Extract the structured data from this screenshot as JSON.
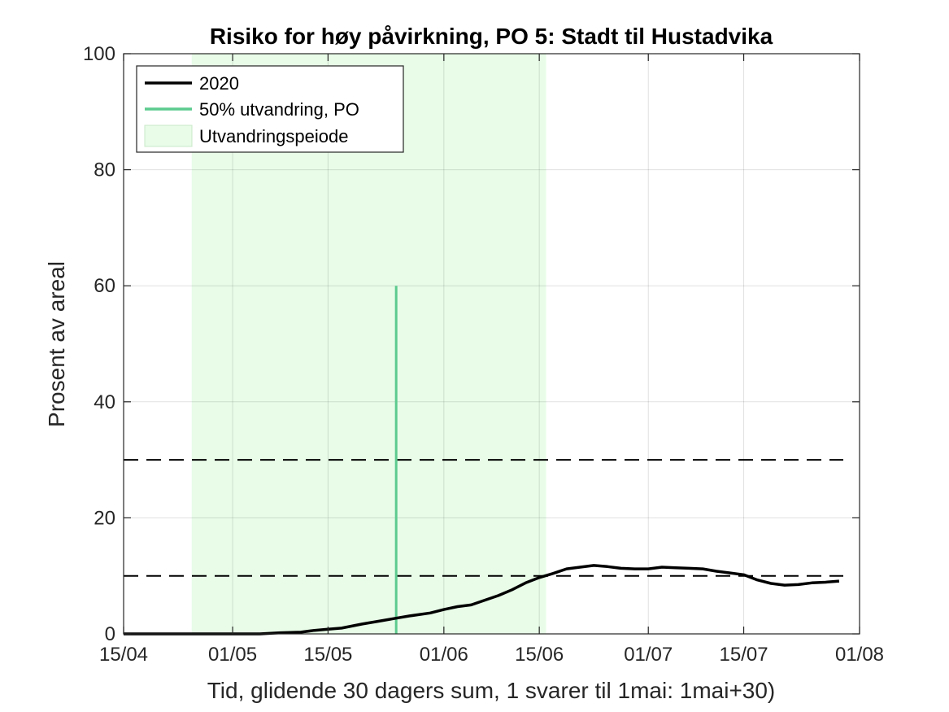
{
  "chart_data": {
    "type": "line",
    "title": "Risiko for høy påvirkning, PO 5: Stadt til Hustadvika",
    "xlabel": "Tid, glidende 30 dagers sum, 1 svarer til 1mai: 1mai+30)",
    "ylabel": "Prosent av areal",
    "xlim": [
      "15/04",
      "01/08"
    ],
    "ylim": [
      0,
      100
    ],
    "x_ticks": [
      "15/04",
      "01/05",
      "15/05",
      "01/06",
      "15/06",
      "01/07",
      "15/07",
      "01/08"
    ],
    "y_ticks": [
      "0",
      "20",
      "40",
      "60",
      "80",
      "100"
    ],
    "grid": true,
    "legend": {
      "placement": "top-left",
      "entries": [
        "2020",
        "50% utvandring, PO",
        "Utvandringspeiode"
      ]
    },
    "colors": {
      "line": "#000000",
      "migration_line": "#5ccb8e",
      "period_fill": "#e8fce8",
      "threshold": "#000000"
    },
    "series": [
      {
        "name": "2020",
        "points": [
          [
            "15/04",
            0
          ],
          [
            "20/04",
            0
          ],
          [
            "25/04",
            0
          ],
          [
            "01/05",
            0
          ],
          [
            "05/05",
            0
          ],
          [
            "08/05",
            0.2
          ],
          [
            "11/05",
            0.3
          ],
          [
            "13/05",
            0.6
          ],
          [
            "15/05",
            0.8
          ],
          [
            "17/05",
            1.0
          ],
          [
            "20/05",
            1.7
          ],
          [
            "23/05",
            2.3
          ],
          [
            "25/05",
            2.7
          ],
          [
            "27/05",
            3.1
          ],
          [
            "30/05",
            3.6
          ],
          [
            "01/06",
            4.2
          ],
          [
            "03/06",
            4.7
          ],
          [
            "05/06",
            5.0
          ],
          [
            "07/06",
            5.8
          ],
          [
            "09/06",
            6.6
          ],
          [
            "11/06",
            7.6
          ],
          [
            "13/06",
            8.8
          ],
          [
            "15/06",
            9.7
          ],
          [
            "17/06",
            10.4
          ],
          [
            "19/06",
            11.2
          ],
          [
            "21/06",
            11.5
          ],
          [
            "23/06",
            11.8
          ],
          [
            "25/06",
            11.6
          ],
          [
            "27/06",
            11.3
          ],
          [
            "29/06",
            11.2
          ],
          [
            "01/07",
            11.2
          ],
          [
            "03/07",
            11.5
          ],
          [
            "05/07",
            11.4
          ],
          [
            "07/07",
            11.3
          ],
          [
            "09/07",
            11.2
          ],
          [
            "11/07",
            10.8
          ],
          [
            "13/07",
            10.5
          ],
          [
            "15/07",
            10.2
          ],
          [
            "17/07",
            9.3
          ],
          [
            "19/07",
            8.7
          ],
          [
            "21/07",
            8.4
          ],
          [
            "23/07",
            8.5
          ],
          [
            "25/07",
            8.8
          ],
          [
            "27/07",
            8.9
          ],
          [
            "29/07",
            9.1
          ]
        ]
      }
    ],
    "migration_50pct": {
      "date": "25/05",
      "value": 60
    },
    "migration_period": {
      "start": "25/04",
      "end": "16/06"
    },
    "thresholds": [
      10,
      30
    ]
  }
}
